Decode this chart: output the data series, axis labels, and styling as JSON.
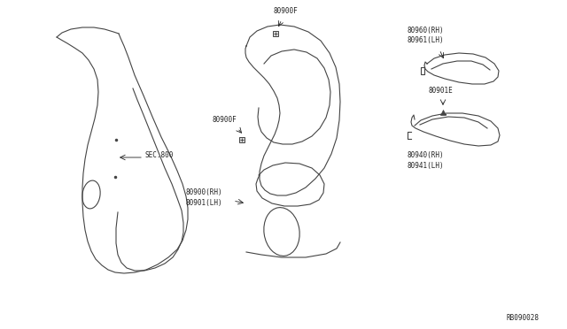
{
  "bg_color": "#ffffff",
  "line_color": "#444444",
  "text_color": "#222222",
  "fig_width": 6.4,
  "fig_height": 3.72,
  "dpi": 100,
  "diagram_id": "RB090028",
  "labels": {
    "sec800": "SEC.800",
    "80900F_top": "80900F",
    "80900F_mid": "80900F",
    "80900_rh": "80900(RH)",
    "80901_lh": "80901(LH)",
    "80960_rh": "80960(RH)",
    "80961_lh": "80961(LH)",
    "80901E": "80901E",
    "80940_rh": "80940(RH)",
    "80941_lh": "80941(LH)"
  }
}
